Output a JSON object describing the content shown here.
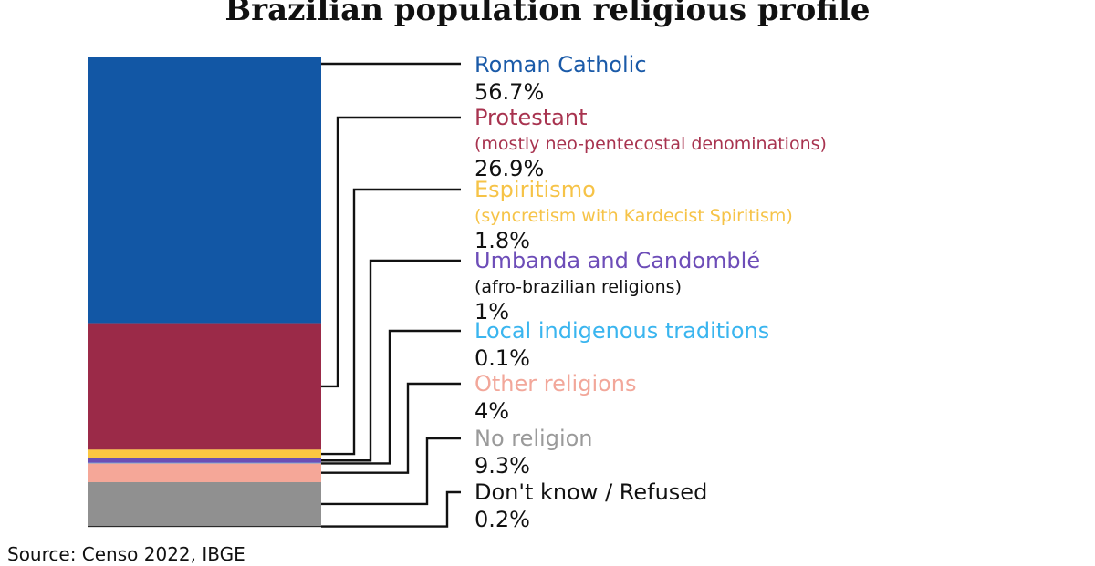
{
  "chart_data": {
    "type": "bar",
    "stacked": true,
    "orientation": "vertical",
    "title": "Brazilian population religious profile",
    "source": "Source: Censo 2022, IBGE",
    "unit": "%",
    "categories": [
      {
        "name": "Roman Catholic",
        "subtitle": "",
        "value": 56.7,
        "label": "56.7%",
        "color": "#1257a5",
        "name_color": "#1a5aa8",
        "sub_color": ""
      },
      {
        "name": "Protestant",
        "subtitle": "(mostly neo-pentecostal denominations)",
        "value": 26.9,
        "label": "26.9%",
        "color": "#9b2a48",
        "name_color": "#a8334f",
        "sub_color": "#a8334f"
      },
      {
        "name": "Espiritismo",
        "subtitle": "(syncretism with Kardecist Spiritism)",
        "value": 1.8,
        "label": "1.8%",
        "color": "#fbc742",
        "name_color": "#f6c347",
        "sub_color": "#f6c347"
      },
      {
        "name": "Umbanda and Candomblé",
        "subtitle": "(afro-brazilian religions)",
        "value": 1,
        "label": "1%",
        "color": "#6b4fb5",
        "name_color": "#6d4db8",
        "sub_color": "#111111"
      },
      {
        "name": "Local indigenous traditions",
        "subtitle": "",
        "value": 0.1,
        "label": "0.1%",
        "color": "#3db6ef",
        "name_color": "#3ab5ef",
        "sub_color": ""
      },
      {
        "name": "Other religions",
        "subtitle": "",
        "value": 4,
        "label": "4%",
        "color": "#f5a798",
        "name_color": "#f2a79a",
        "sub_color": ""
      },
      {
        "name": "No religion",
        "subtitle": "",
        "value": 9.3,
        "label": "9.3%",
        "color": "#909090",
        "name_color": "#9a9a9a",
        "sub_color": ""
      },
      {
        "name": "Don't know / Refused",
        "subtitle": "",
        "value": 0.2,
        "label": "0.2%",
        "color": "#2b2b2b",
        "name_color": "#111111",
        "sub_color": ""
      }
    ],
    "leader_line_color": "#111111"
  }
}
